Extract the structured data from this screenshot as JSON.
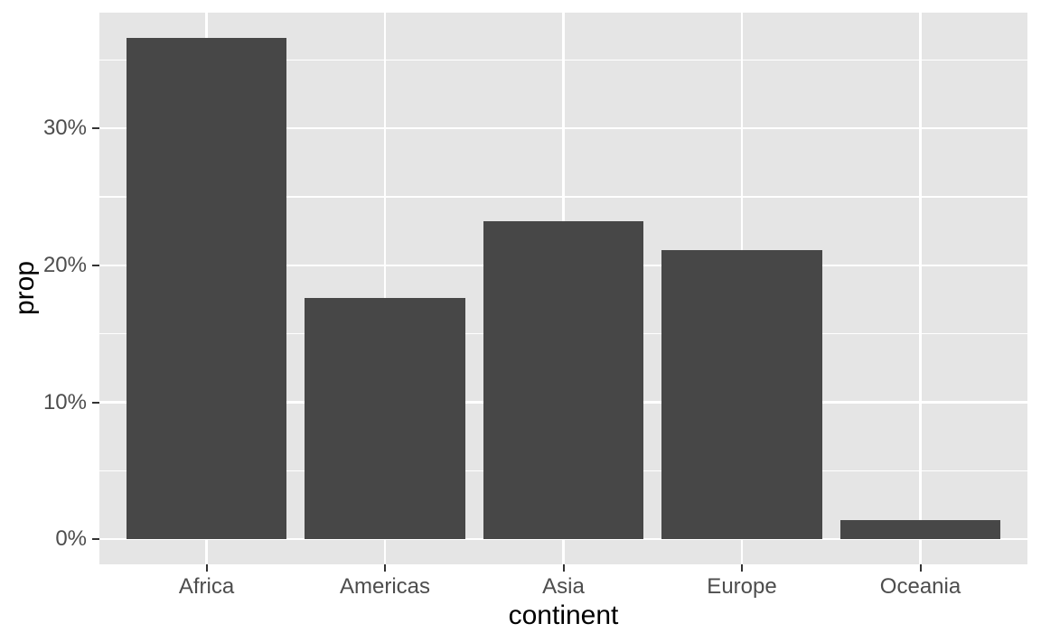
{
  "chart_data": {
    "type": "bar",
    "title": "",
    "xlabel": "continent",
    "ylabel": "prop",
    "categories": [
      "Africa",
      "Americas",
      "Asia",
      "Europe",
      "Oceania"
    ],
    "values": [
      36.6,
      17.6,
      23.2,
      21.1,
      1.4
    ],
    "value_unit": "%",
    "y_major_ticks": [
      0,
      10,
      20,
      30
    ],
    "y_major_labels": [
      "0%",
      "10%",
      "20%",
      "30%"
    ],
    "y_minor_ticks": [
      5,
      15,
      25,
      35
    ],
    "ylim": [
      -1.83,
      38.45
    ],
    "grid": true,
    "legend_position": "none",
    "style": {
      "figure_bg": "#FFFFFF",
      "panel_bg": "#E5E5E5",
      "bar_fill": "#474747",
      "grid_major_color": "#FFFFFF",
      "grid_minor_color": "#FFFFFF",
      "grid_major_width": 2.5,
      "grid_minor_width": 1.2,
      "axis_tick_color": "#333333",
      "tick_label_color": "#4D4D4D",
      "axis_title_color": "#000000",
      "bar_rel_width": 0.9,
      "discrete_expand": 0.6
    }
  }
}
